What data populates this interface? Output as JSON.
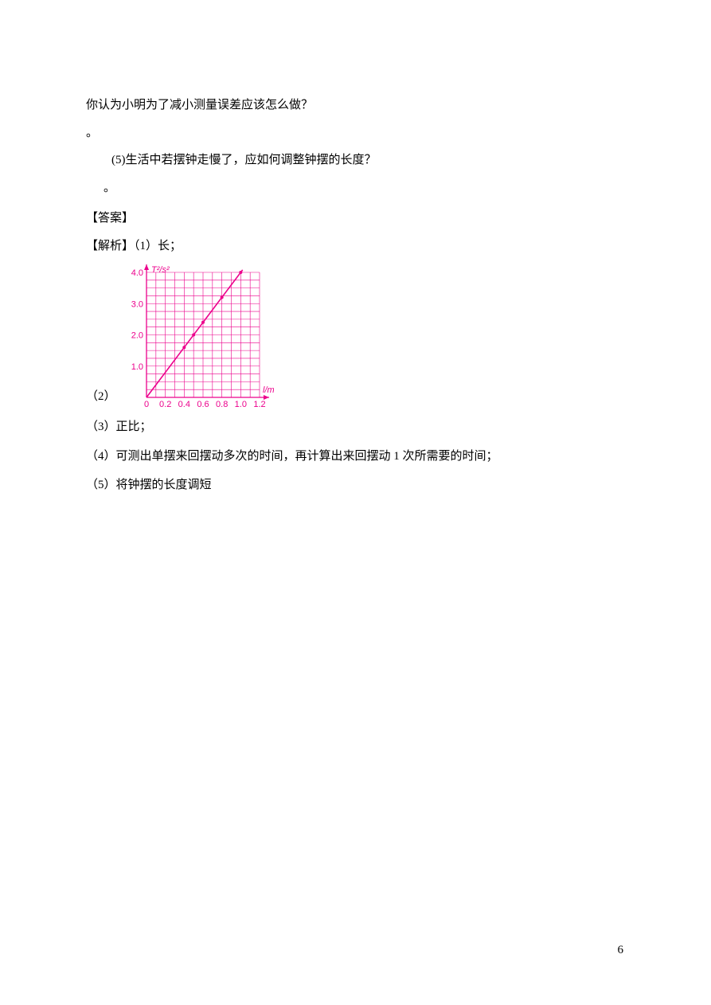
{
  "question": {
    "line1": "你认为小明为了减小测量误差应该怎么做？",
    "dot1": "。",
    "q5": "(5)生活中若摆钟走慢了，应如何调整钟摆的长度？",
    "dot2": "。"
  },
  "answer": {
    "header": "【答案】",
    "prefix": "【解析】（1）长；",
    "chart_label": "（2）",
    "a3": "（3）正比；",
    "a4": "（4）可测出单摆来回摆动多次的时间，再计算出来回摆动 1 次所需要的时间；",
    "a5": "（5）将钟摆的长度调短"
  },
  "chart": {
    "type": "line",
    "width": 190,
    "height": 185,
    "background": "#ffffff",
    "grid_color": "#ec008c",
    "line_color": "#ec008c",
    "text_color": "#ec008c",
    "axis_fontsize": 11,
    "x": {
      "label": "l/m",
      "min": 0,
      "max": 1.2,
      "ticks": [
        "0",
        "0.2",
        "0.4",
        "0.6",
        "0.8",
        "1.0",
        "1.2"
      ],
      "tick_values": [
        0,
        0.2,
        0.4,
        0.6,
        0.8,
        1.0,
        1.2
      ]
    },
    "y": {
      "label": "T²/s²",
      "min": 0,
      "max": 4.0,
      "ticks": [
        "1.0",
        "2.0",
        "3.0",
        "4.0"
      ],
      "tick_values": [
        1.0,
        2.0,
        3.0,
        4.0
      ]
    },
    "grid": {
      "x_major_count": 6,
      "x_minor_per_major": 2,
      "y_major_count": 4,
      "y_minor_per_major": 4
    },
    "data": {
      "xs": [
        0.4,
        0.5,
        0.6,
        0.8,
        1.0
      ],
      "ys": [
        1.6,
        2.0,
        2.4,
        3.2,
        4.0
      ]
    },
    "fit_line": {
      "x1": 0,
      "y1": 0,
      "x2": 1.02,
      "y2": 4.08
    },
    "marker_radius": 2
  },
  "page_number": "6"
}
